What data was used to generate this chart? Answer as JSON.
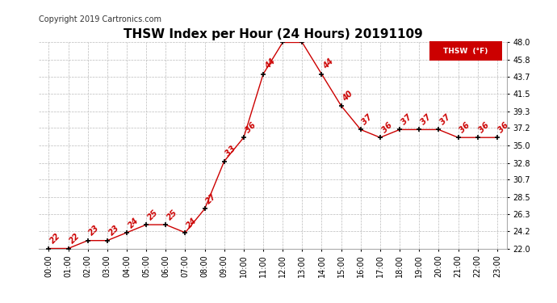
{
  "title": "THSW Index per Hour (24 Hours) 20191109",
  "copyright": "Copyright 2019 Cartronics.com",
  "legend_label": "THSW  (°F)",
  "hours": [
    0,
    1,
    2,
    3,
    4,
    5,
    6,
    7,
    8,
    9,
    10,
    11,
    12,
    13,
    14,
    15,
    16,
    17,
    18,
    19,
    20,
    21,
    22,
    23
  ],
  "values": [
    22,
    22,
    23,
    23,
    24,
    25,
    25,
    24,
    27,
    33,
    36,
    44,
    48,
    48,
    44,
    40,
    37,
    36,
    37,
    37,
    37,
    36,
    36,
    36
  ],
  "ylim": [
    22.0,
    48.0
  ],
  "yticks": [
    22.0,
    24.2,
    26.3,
    28.5,
    30.7,
    32.8,
    35.0,
    37.2,
    39.3,
    41.5,
    43.7,
    45.8,
    48.0
  ],
  "line_color": "#cc0000",
  "marker_color": "#000000",
  "label_color": "#cc0000",
  "title_fontsize": 11,
  "copyright_fontsize": 7,
  "tick_fontsize": 7,
  "label_fontsize": 7,
  "grid_color": "#bbbbbb",
  "background_color": "#ffffff",
  "plot_bg_color": "#ffffff",
  "legend_bg": "#cc0000",
  "legend_text_color": "#ffffff"
}
